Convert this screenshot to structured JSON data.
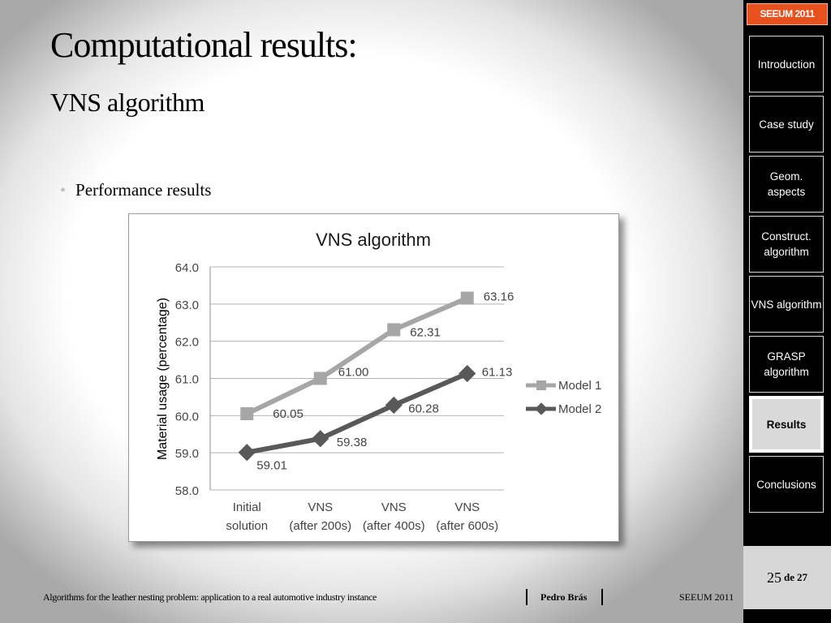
{
  "slide": {
    "title": "Computational results:",
    "subtitle": "VNS algorithm",
    "bullet": "Performance results"
  },
  "nav": {
    "brand": "SEEUM 2011",
    "items": [
      {
        "label": "Introduction",
        "active": false
      },
      {
        "label": "Case study",
        "active": false
      },
      {
        "label": "Geom. aspects",
        "active": false
      },
      {
        "label": "Construct. algorithm",
        "active": false
      },
      {
        "label": "VNS algorithm",
        "active": false
      },
      {
        "label": "GRASP algorithm",
        "active": false
      },
      {
        "label": "Results",
        "active": true
      },
      {
        "label": "Conclusions",
        "active": false
      }
    ],
    "page": {
      "current": "25",
      "de": "de",
      "total": "27"
    }
  },
  "footer": {
    "title": "Algorithms for the leather nesting problem: application to a real automotive industry instance",
    "author": "Pedro Brás",
    "event": "SEEUM 2011"
  },
  "colors": {
    "model1": "#a6a6a6",
    "model2": "#595959",
    "brand": "#e8501d",
    "nav_bg": "#000000"
  },
  "chart_data": {
    "type": "line",
    "title": "VNS algorithm",
    "ylabel": "Material usage (percentage)",
    "xlabel": "",
    "categories": [
      [
        "Initial",
        "solution"
      ],
      [
        "VNS",
        "(after 200s)"
      ],
      [
        "VNS",
        "(after 400s)"
      ],
      [
        "VNS",
        "(after 600s)"
      ]
    ],
    "ylim": [
      58.0,
      64.0
    ],
    "yticks": [
      "58.0",
      "59.0",
      "60.0",
      "61.0",
      "62.0",
      "63.0",
      "64.0"
    ],
    "grid": true,
    "legend": "right",
    "series": [
      {
        "name": "Model 1",
        "values": [
          60.05,
          61.0,
          62.31,
          63.16
        ],
        "labels": [
          "60.05",
          "61.00",
          "62.31",
          "63.16"
        ],
        "marker": "square",
        "color": "#a6a6a6"
      },
      {
        "name": "Model 2",
        "values": [
          59.01,
          59.38,
          60.28,
          61.13
        ],
        "labels": [
          "59.01",
          "59.38",
          "60.28",
          "61.13"
        ],
        "marker": "diamond",
        "color": "#595959"
      }
    ]
  }
}
